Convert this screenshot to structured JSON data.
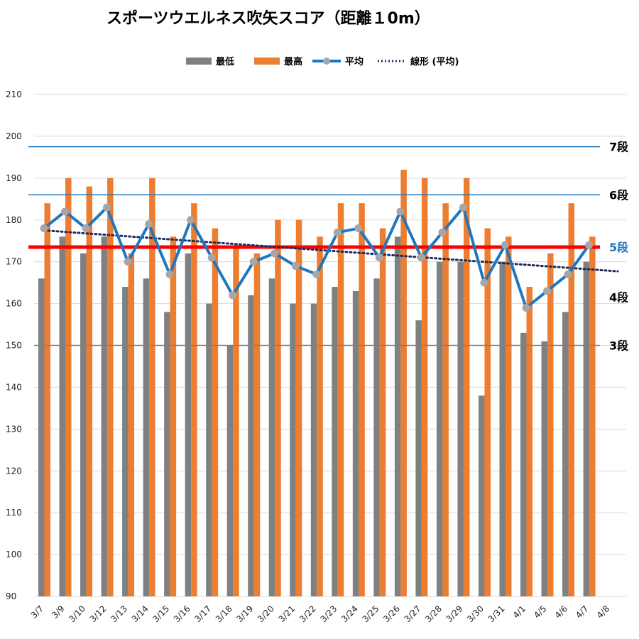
{
  "title": "スポーツウエルネス吹矢スコア（距離１0m）",
  "legend": {
    "min_label": "最低",
    "max_label": "最高",
    "avg_label": "平均",
    "trend_label": "線形 (平均)"
  },
  "colors": {
    "min": "#808080",
    "max": "#ED7D31",
    "avg_line": "#1F77C0",
    "avg_marker": "#A6A6A6",
    "trend": "#1F2A5A",
    "threshold_red": "#FF0000",
    "threshold_blue": "#1F77C0",
    "threshold_gray": "#808080",
    "grid": "#D9D9D9"
  },
  "chart_data": {
    "type": "bar",
    "title": "スポーツウエルネス吹矢スコア（距離１0m）",
    "xlabel": "",
    "ylabel": "",
    "ylim": [
      90,
      210
    ],
    "yticks": [
      90,
      100,
      110,
      120,
      130,
      140,
      150,
      160,
      170,
      180,
      190,
      200,
      210
    ],
    "grid": true,
    "legend_position": "top",
    "categories": [
      "3/7",
      "3/9",
      "3/10",
      "3/12",
      "3/13",
      "3/14",
      "3/15",
      "3/16",
      "3/17",
      "3/18",
      "3/19",
      "3/20",
      "3/21",
      "3/22",
      "3/23",
      "3/24",
      "3/25",
      "3/26",
      "3/27",
      "3/28",
      "3/29",
      "3/30",
      "3/31",
      "4/1",
      "4/5",
      "4/6",
      "4/7",
      "4/8"
    ],
    "series": [
      {
        "name": "最低",
        "type": "bar",
        "values": [
          166,
          176,
          172,
          176,
          164,
          166,
          158,
          172,
          160,
          150,
          162,
          166,
          160,
          160,
          164,
          163,
          166,
          176,
          156,
          170,
          170,
          138,
          170,
          153,
          151,
          158,
          170,
          null
        ]
      },
      {
        "name": "最高",
        "type": "bar",
        "values": [
          184,
          190,
          188,
          190,
          172,
          190,
          176,
          184,
          178,
          174,
          172,
          180,
          180,
          176,
          184,
          184,
          178,
          192,
          190,
          184,
          190,
          178,
          176,
          164,
          172,
          184,
          176,
          null
        ]
      },
      {
        "name": "平均",
        "type": "line",
        "values": [
          178,
          182,
          178,
          183,
          170,
          179,
          167,
          180,
          171,
          162,
          170,
          172,
          169,
          167,
          177,
          178,
          171,
          182,
          171,
          177,
          183,
          165,
          174,
          159,
          163,
          167,
          174,
          null
        ]
      },
      {
        "name": "線形 (平均)",
        "type": "trendline",
        "start": 177.5,
        "end": 168.2
      }
    ],
    "reference_lines": [
      {
        "value": 197.5,
        "label": "7段",
        "color": "blue_thin"
      },
      {
        "value": 186,
        "label": "6段",
        "color": "blue_thin"
      },
      {
        "value": 173.5,
        "label": "5段",
        "color": "red_thick"
      },
      {
        "value": 150,
        "label": "3段",
        "color": "gray_thin"
      }
    ],
    "side_labels": [
      {
        "value": 161.5,
        "label": "4段"
      }
    ]
  }
}
